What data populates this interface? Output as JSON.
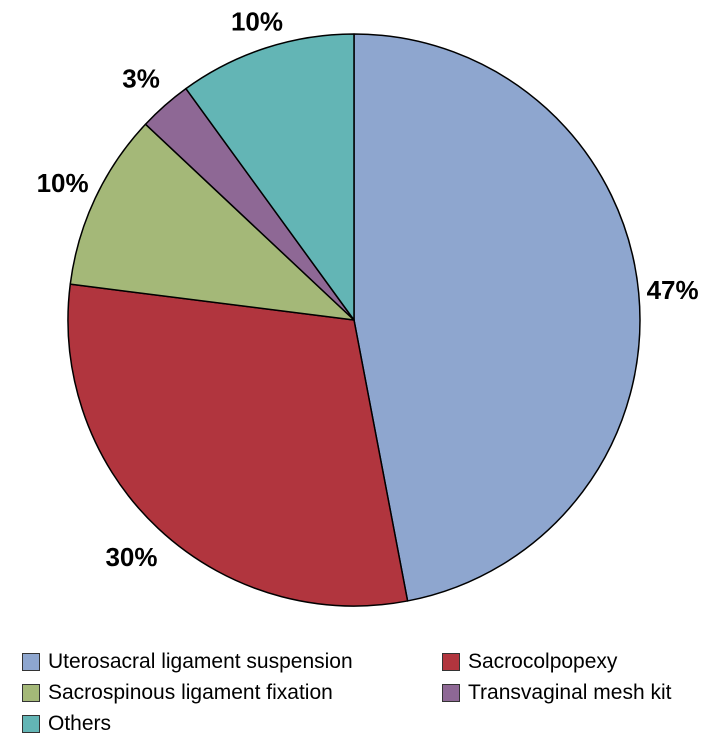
{
  "chart_data": {
    "type": "pie",
    "start_angle": "12 o'clock",
    "direction": "clockwise",
    "slices": [
      {
        "label": "Uterosacral ligament suspension",
        "value": 47,
        "display": "47%",
        "color": "#8EA6CF"
      },
      {
        "label": "Sacrocolpopexy",
        "value": 30,
        "display": "30%",
        "color": "#B1353E"
      },
      {
        "label": "Sacrospinous ligament fixation",
        "value": 10,
        "display": "10%",
        "color": "#A4B878"
      },
      {
        "label": "Transvaginal mesh kit",
        "value": 3,
        "display": "3%",
        "color": "#8E6895"
      },
      {
        "label": "Others",
        "value": 10,
        "display": "10%",
        "color": "#63B5B5"
      }
    ],
    "legend_position": "bottom"
  }
}
